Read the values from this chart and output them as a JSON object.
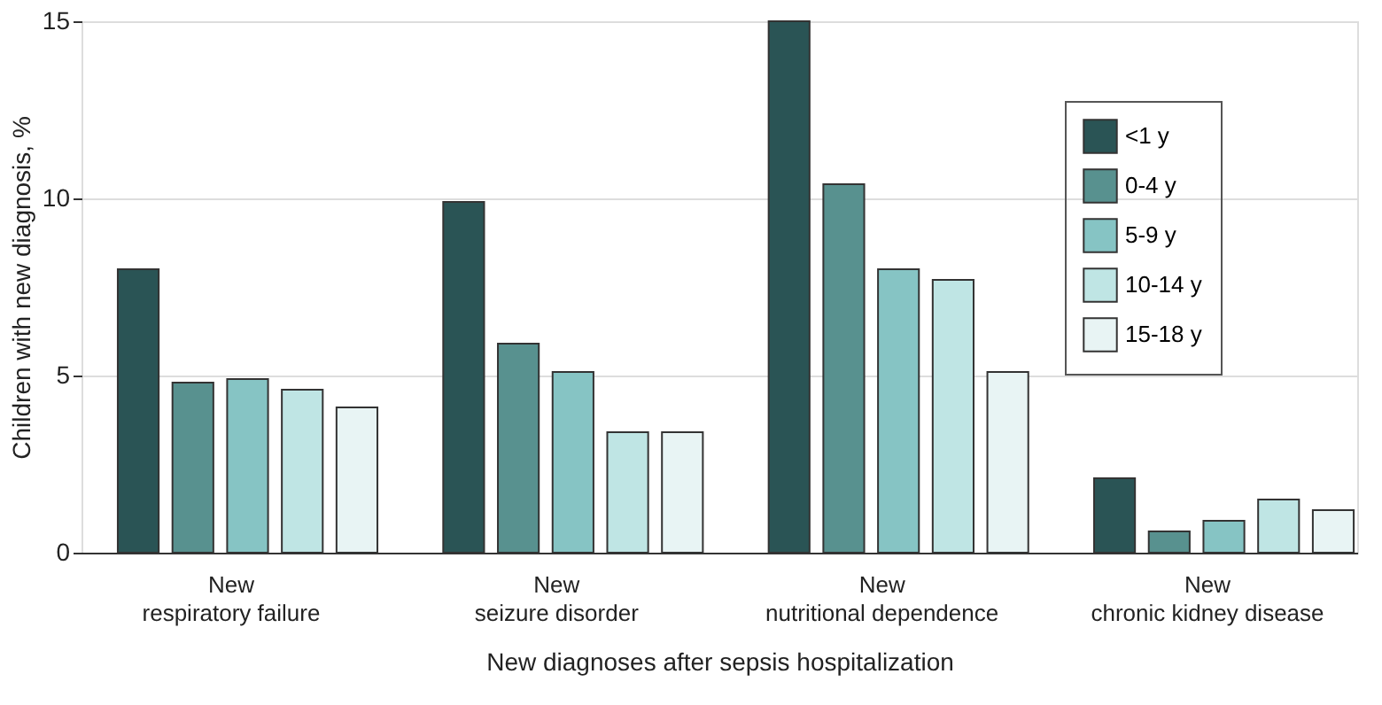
{
  "chart_data": {
    "type": "bar",
    "xlabel": "New diagnoses after sepsis hospitalization",
    "ylabel": "Children with new diagnosis, %",
    "categories": [
      "New\nrespiratory failure",
      "New\nseizure disorder",
      "New\nnutritional dependence",
      "New\nchronic kidney disease"
    ],
    "series": [
      {
        "name": "<1 y",
        "color": "#2a5455",
        "values": [
          8.0,
          9.9,
          15.0,
          2.1
        ]
      },
      {
        "name": "0-4 y",
        "color": "#58918f",
        "values": [
          4.8,
          5.9,
          10.4,
          0.6
        ]
      },
      {
        "name": "5-9 y",
        "color": "#86c4c4",
        "values": [
          4.9,
          5.1,
          8.0,
          0.9
        ]
      },
      {
        "name": "10-14 y",
        "color": "#bfe5e4",
        "values": [
          4.6,
          3.4,
          7.7,
          1.5
        ]
      },
      {
        "name": "15-18 y",
        "color": "#e8f4f4",
        "values": [
          4.1,
          3.4,
          5.1,
          1.2
        ]
      }
    ],
    "ylim": [
      0,
      15
    ],
    "yticks": [
      0,
      5,
      10,
      15
    ],
    "grid": "y",
    "legend": "top right"
  }
}
